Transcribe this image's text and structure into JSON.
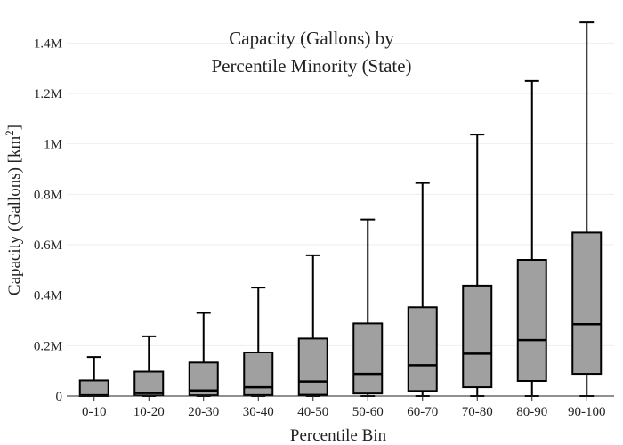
{
  "chart_data": {
    "type": "box",
    "title_lines": [
      "Capacity (Gallons) by",
      "Percentile Minority (State)"
    ],
    "xlabel": "Percentile Bin",
    "ylabel": "Capacity (Gallons)  [km",
    "ylabel_sup": "2",
    "ylabel_close": "]",
    "ylim": [
      0,
      1500000
    ],
    "yticks": [
      {
        "value": 0,
        "label": "0"
      },
      {
        "value": 200000,
        "label": "0.2M"
      },
      {
        "value": 400000,
        "label": "0.4M"
      },
      {
        "value": 600000,
        "label": "0.6M"
      },
      {
        "value": 800000,
        "label": "0.8M"
      },
      {
        "value": 1000000,
        "label": "1M"
      },
      {
        "value": 1200000,
        "label": "1.2M"
      },
      {
        "value": 1400000,
        "label": "1.4M"
      }
    ],
    "categories": [
      "0-10",
      "10-20",
      "20-30",
      "30-40",
      "40-50",
      "50-60",
      "60-70",
      "70-80",
      "80-90",
      "90-100"
    ],
    "boxes": [
      {
        "category": "0-10",
        "min": 0,
        "q1": 0,
        "median": 3000,
        "q3": 62000,
        "max": 155000
      },
      {
        "category": "10-20",
        "min": 0,
        "q1": 2000,
        "median": 12000,
        "q3": 97000,
        "max": 237000
      },
      {
        "category": "20-30",
        "min": 0,
        "q1": 3000,
        "median": 22000,
        "q3": 133000,
        "max": 330000
      },
      {
        "category": "30-40",
        "min": 0,
        "q1": 4000,
        "median": 35000,
        "q3": 173000,
        "max": 430000
      },
      {
        "category": "40-50",
        "min": 0,
        "q1": 5000,
        "median": 58000,
        "q3": 228000,
        "max": 558000
      },
      {
        "category": "50-60",
        "min": 0,
        "q1": 10000,
        "median": 88000,
        "q3": 288000,
        "max": 700000
      },
      {
        "category": "60-70",
        "min": 0,
        "q1": 20000,
        "median": 122000,
        "q3": 352000,
        "max": 845000
      },
      {
        "category": "70-80",
        "min": 0,
        "q1": 35000,
        "median": 168000,
        "q3": 438000,
        "max": 1037000
      },
      {
        "category": "80-90",
        "min": 0,
        "q1": 60000,
        "median": 222000,
        "q3": 540000,
        "max": 1250000
      },
      {
        "category": "90-100",
        "min": 0,
        "q1": 88000,
        "median": 285000,
        "q3": 648000,
        "max": 1482000
      }
    ],
    "box_color": "#a0a0a0",
    "line_color": "#000000",
    "grid": true,
    "legend": "none"
  }
}
